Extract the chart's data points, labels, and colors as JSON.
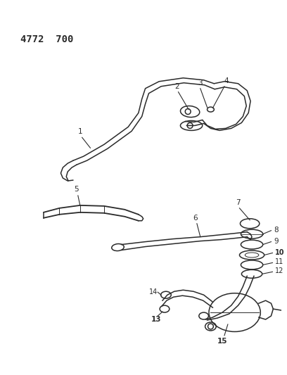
{
  "title": "4772  700",
  "bg_color": "#ffffff",
  "line_color": "#2a2a2a",
  "text_color": "#000000",
  "figsize": [
    4.08,
    5.33
  ],
  "dpi": 100
}
